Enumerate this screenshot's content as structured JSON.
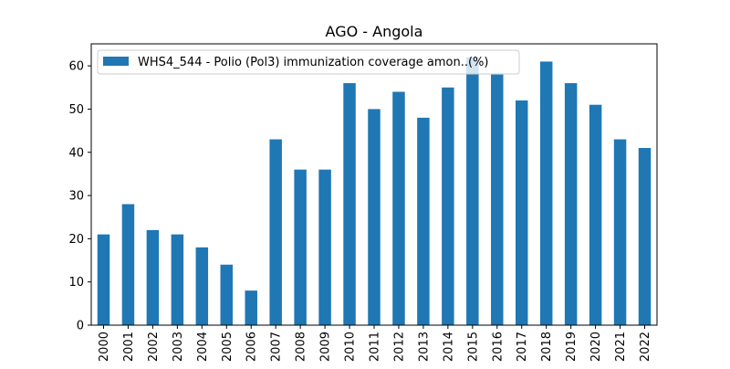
{
  "colors": {
    "bar": "#1f77b4",
    "axis": "#000000",
    "background": "#ffffff",
    "legend_border": "#cccccc"
  },
  "chart_data": {
    "type": "bar",
    "title": "AGO - Angola",
    "xlabel": "",
    "ylabel": "",
    "categories": [
      "2000",
      "2001",
      "2002",
      "2003",
      "2004",
      "2005",
      "2006",
      "2007",
      "2008",
      "2009",
      "2010",
      "2011",
      "2012",
      "2013",
      "2014",
      "2015",
      "2016",
      "2017",
      "2018",
      "2019",
      "2020",
      "2021",
      "2022"
    ],
    "series": [
      {
        "name": "WHS4_544 - Polio (Pol3) immunization coverage amon..(%)",
        "values": [
          21,
          28,
          22,
          21,
          18,
          14,
          8,
          43,
          36,
          36,
          56,
          50,
          54,
          48,
          55,
          62,
          58,
          52,
          61,
          56,
          51,
          43,
          41
        ]
      }
    ],
    "ylim": [
      0,
      65.1
    ],
    "yticks": [
      0,
      10,
      20,
      30,
      40,
      50,
      60
    ],
    "grid": false,
    "legend_position": "upper-left",
    "xtick_rotation": "vertical"
  }
}
